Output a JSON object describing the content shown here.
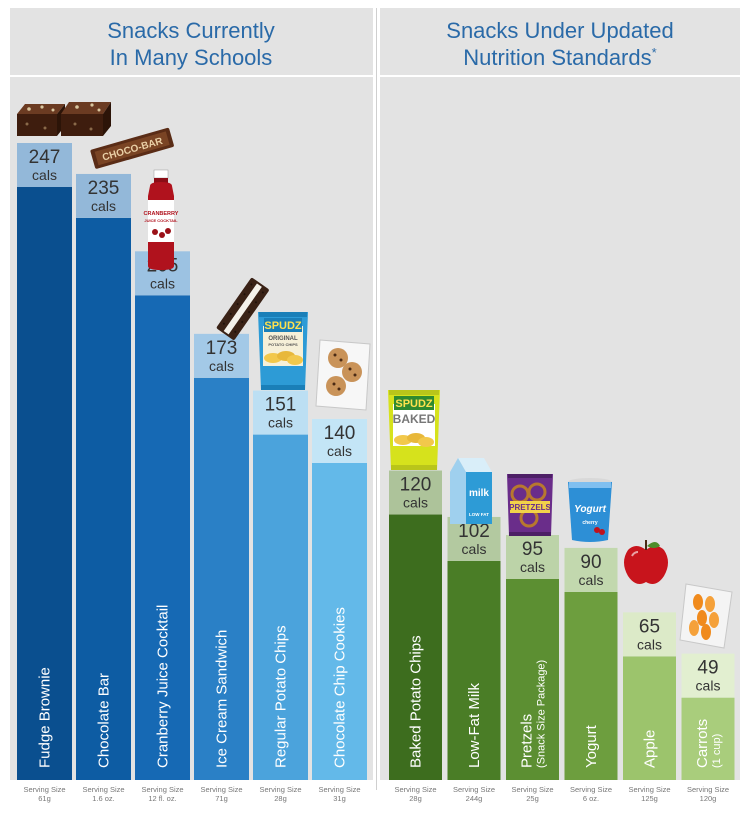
{
  "chart_data": [
    {
      "type": "bar",
      "title_lines": [
        "Snacks Currently",
        "In Many Schools"
      ],
      "unit": "cals",
      "serving_label": "Serving Size",
      "categories": [
        "Fudge Brownie",
        "Chocolate Bar",
        "Cranberry Juice Cocktail",
        "Ice Cream Sandwich",
        "Regular Potato Chips",
        "Chocolate Chip Cookies"
      ],
      "subnotes": [
        "",
        "",
        "",
        "",
        "",
        ""
      ],
      "values": [
        247,
        235,
        205,
        173,
        151,
        140
      ],
      "servings": [
        "61g",
        "1.6 oz.",
        "12 fl. oz.",
        "71g",
        "28g",
        "31g"
      ],
      "colors": [
        "#0a4f8f",
        "#0d5ca3",
        "#1669b4",
        "#2a80c6",
        "#4ba3dc",
        "#63b9e9"
      ],
      "tag_colors": [
        "#93b8d9",
        "#93b8d9",
        "#9cc2e2",
        "#a3c9e7",
        "#bcdff3",
        "#c3e5f6"
      ],
      "icons": [
        "brownie-icon",
        "chocolate-bar-icon",
        "cranberry-juice-icon",
        "ice-cream-sandwich-icon",
        "potato-chips-icon",
        "cookies-bag-icon"
      ],
      "icon_texts": {
        "choco_bar": "CHOCO-BAR",
        "juice_brand": "CRANBERRY",
        "juice_sub": "JUICE COCKTAIL",
        "chips_brand": "SPUDZ",
        "chips_line1": "ORIGINAL",
        "chips_line2": "POTATO CHIPS"
      },
      "ylim": [
        0,
        260
      ]
    },
    {
      "type": "bar",
      "title_lines": [
        "Snacks Under Updated",
        "Nutrition Standards"
      ],
      "title_mark": "*",
      "unit": "cals",
      "serving_label": "Serving Size",
      "categories": [
        "Baked Potato Chips",
        "Low-Fat Milk",
        "Pretzels",
        "Yogurt",
        "Apple",
        "Carrots"
      ],
      "subnotes": [
        "",
        "",
        "(Snack Size Package)",
        "",
        "",
        "(1 cup)"
      ],
      "values": [
        120,
        102,
        95,
        90,
        65,
        49
      ],
      "servings": [
        "28g",
        "244g",
        "25g",
        "6 oz.",
        "125g",
        "120g"
      ],
      "colors": [
        "#3d6d1e",
        "#4a7d26",
        "#5c8f32",
        "#6d9e3e",
        "#9cc46c",
        "#a9cd7c"
      ],
      "tag_colors": [
        "#adc39a",
        "#b3c9a0",
        "#bcd3a8",
        "#c2d8ae",
        "#dceac8",
        "#e2efd0"
      ],
      "icons": [
        "baked-chips-icon",
        "milk-carton-icon",
        "pretzels-bag-icon",
        "yogurt-cup-icon",
        "apple-icon",
        "carrots-bag-icon"
      ],
      "icon_texts": {
        "chips_brand": "SPUDZ",
        "chips_line1": "BAKED",
        "milk": "milk",
        "milk_sub": "LOW FAT",
        "pretzels": "PRETZELS",
        "yogurt": "Yogurt",
        "yogurt_sub": "cherry"
      },
      "ylim": [
        0,
        260
      ]
    }
  ]
}
